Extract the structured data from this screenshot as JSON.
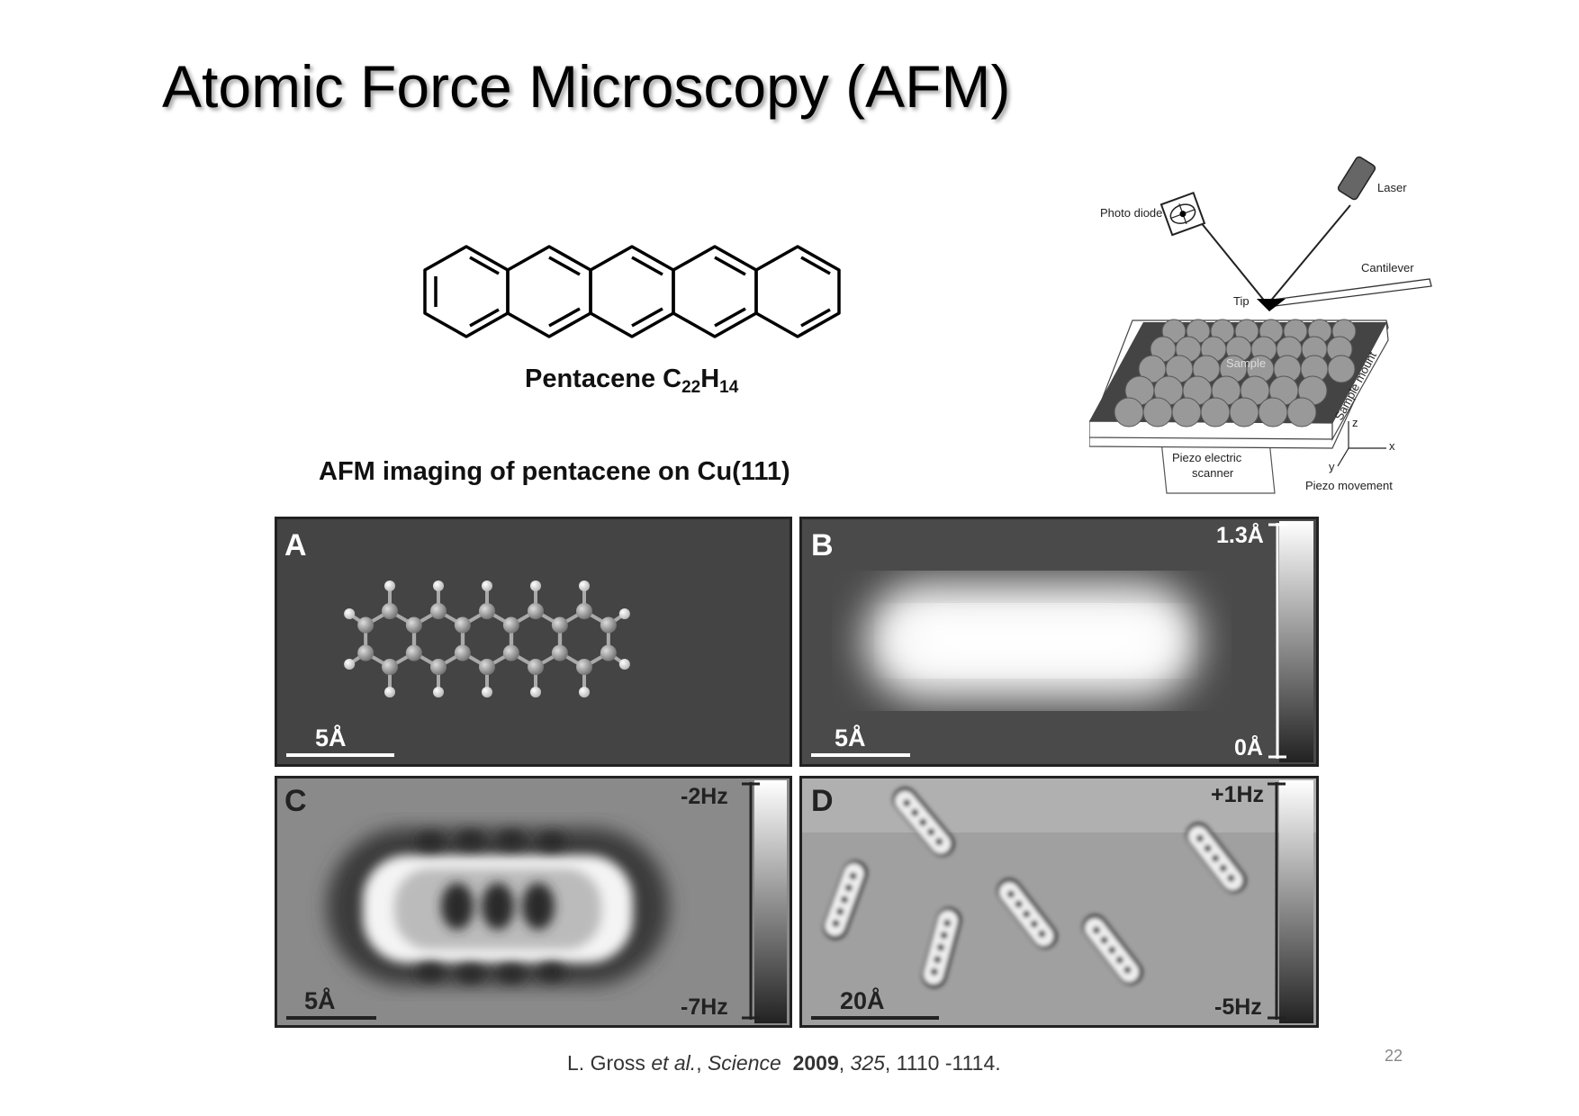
{
  "slide": {
    "title": "Atomic Force Microscopy (AFM)",
    "page_number": "22"
  },
  "molecule": {
    "name": "Pentacene C",
    "sub1": "22",
    "mid": "H",
    "sub2": "14"
  },
  "afm_caption": "AFM imaging of pentacene on Cu(111)",
  "diagram": {
    "laser": "Laser",
    "photo_diode": "Photo diode",
    "cantilever": "Cantilever",
    "tip": "Tip",
    "sample": "Sample",
    "sample_mount": "Sample mount",
    "piezo_scanner_1": "Piezo electric",
    "piezo_scanner_2": "scanner",
    "piezo_movement": "Piezo movement",
    "axis_x": "x",
    "axis_y": "y",
    "axis_z": "z"
  },
  "panels": {
    "A": {
      "label": "A",
      "scale": "5Å"
    },
    "B": {
      "label": "B",
      "scale": "5Å",
      "bar_max": "1.3Å",
      "bar_min": "0Å"
    },
    "C": {
      "label": "C",
      "scale": "5Å",
      "bar_max": "-2Hz",
      "bar_min": "-7Hz"
    },
    "D": {
      "label": "D",
      "scale": "20Å",
      "bar_max": "+1Hz",
      "bar_min": "-5Hz"
    }
  },
  "citation": {
    "authors": "L.  Gross ",
    "etal": "et al.",
    "sep1": ", ",
    "journal": "Science",
    "year": "2009",
    "sep2": ", ",
    "volume": "325",
    "pages": ", 1110 -1114."
  }
}
